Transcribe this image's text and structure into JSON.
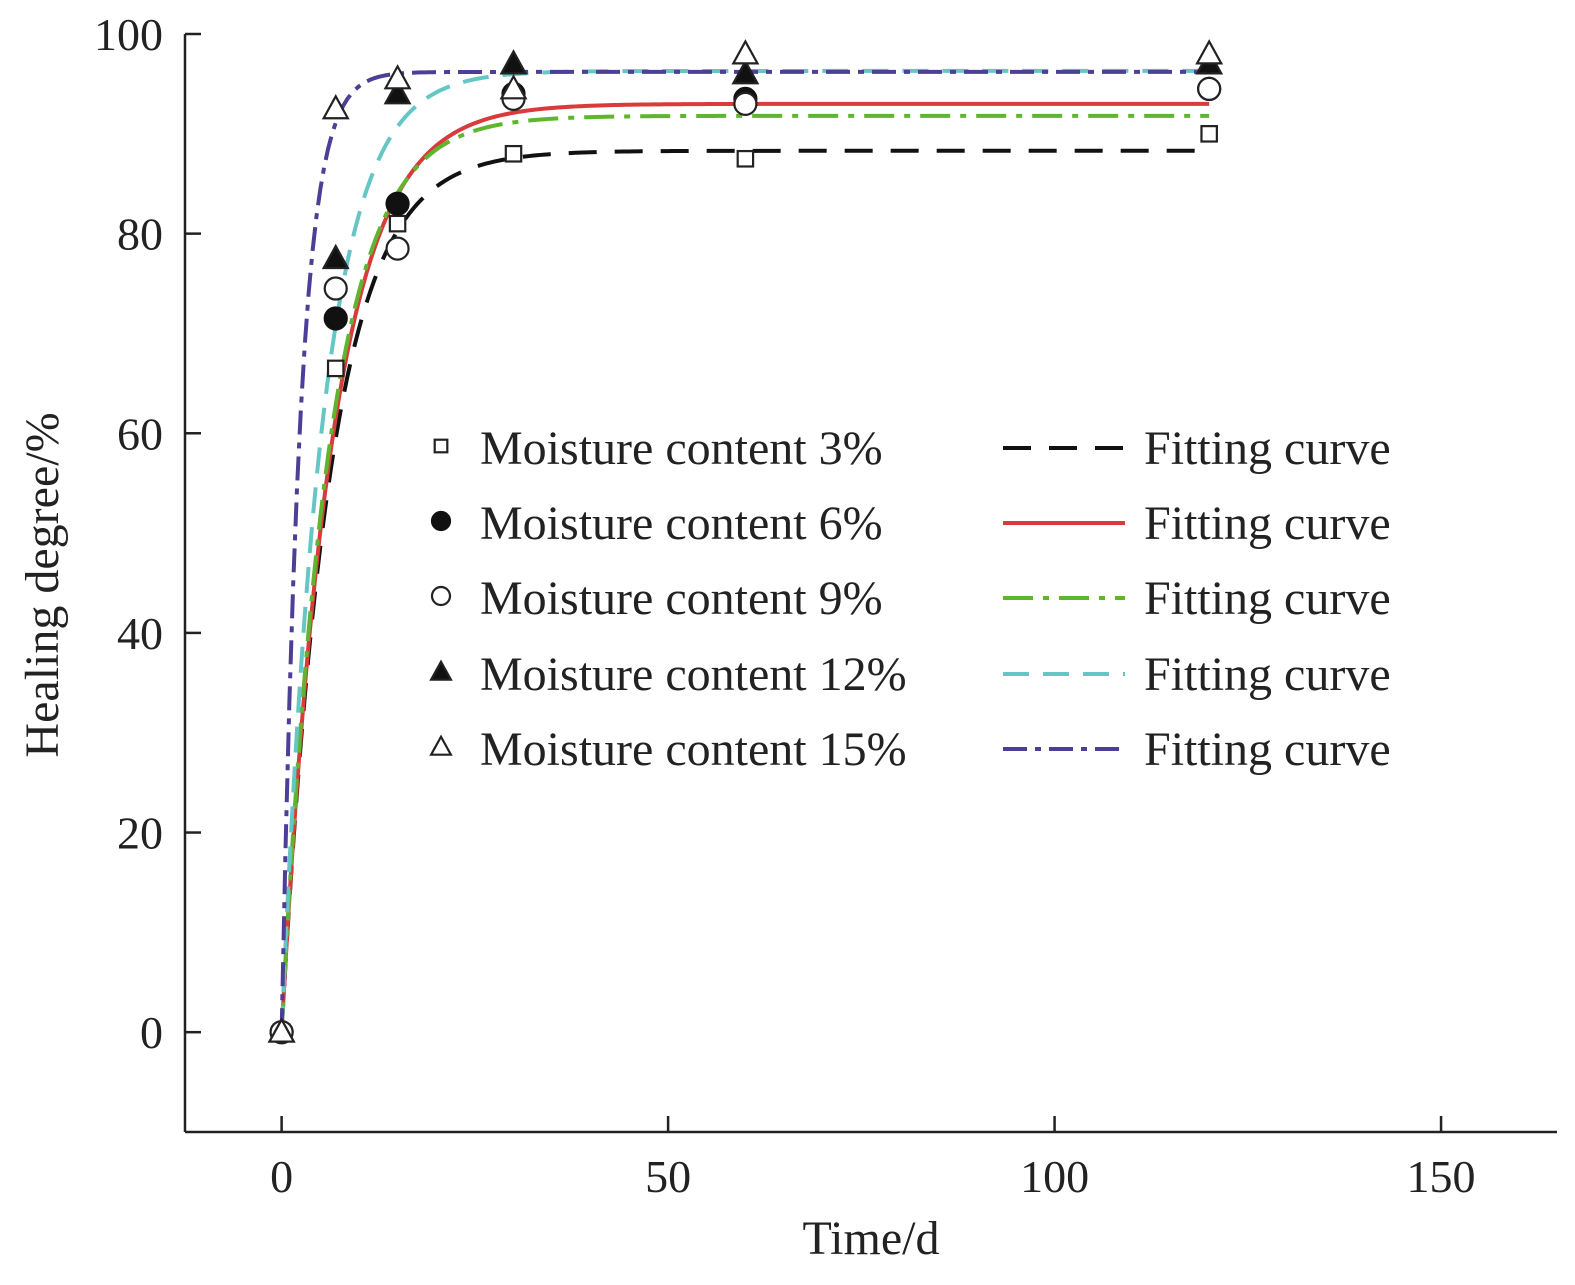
{
  "chart_data": {
    "type": "scatter",
    "xlabel": "Time/d",
    "ylabel": "Healing degree/%",
    "xlim": [
      -12.5,
      165
    ],
    "ylim": [
      -10,
      100
    ],
    "x_ticks": [
      0,
      50,
      100,
      150
    ],
    "y_ticks": [
      0,
      20,
      40,
      60,
      80,
      100
    ],
    "grid": false,
    "legend_position": "center-right",
    "series": [
      {
        "name": "Moisture content 3%",
        "marker": "open-square",
        "color": "#222222",
        "x": [
          0,
          7,
          15,
          30,
          60,
          120
        ],
        "y": [
          0,
          66.5,
          81.0,
          88.0,
          87.5,
          90.0
        ]
      },
      {
        "name": "Moisture content 6%",
        "marker": "filled-circle",
        "color": "#222222",
        "x": [
          0,
          7,
          15,
          30,
          60,
          120
        ],
        "y": [
          0,
          71.5,
          83.0,
          94.0,
          93.5,
          94.5
        ]
      },
      {
        "name": "Moisture content 9%",
        "marker": "open-circle",
        "color": "#222222",
        "x": [
          0,
          7,
          15,
          30,
          60,
          120
        ],
        "y": [
          0,
          74.5,
          78.5,
          93.5,
          93.0,
          94.5
        ]
      },
      {
        "name": "Moisture content 12%",
        "marker": "filled-triangle",
        "color": "#222222",
        "x": [
          0,
          7,
          15,
          30,
          60,
          120
        ],
        "y": [
          0,
          77.5,
          94.0,
          97.0,
          96.0,
          97.0
        ]
      },
      {
        "name": "Moisture content 15%",
        "marker": "open-triangle",
        "color": "#222222",
        "x": [
          0,
          7,
          15,
          30,
          60,
          120
        ],
        "y": [
          0,
          92.5,
          95.5,
          94.5,
          98.0,
          98.0
        ]
      }
    ],
    "fits": [
      {
        "name": "Fitting curve",
        "asymptote": 88.3,
        "rate": 0.16,
        "color": "#111111",
        "dash": "28,18",
        "x_range": [
          0,
          120
        ]
      },
      {
        "name": "Fitting curve",
        "asymptote": 93.0,
        "rate": 0.155,
        "color": "#d93a3a",
        "dash": "",
        "x_range": [
          0,
          120
        ]
      },
      {
        "name": "Fitting curve",
        "asymptote": 91.8,
        "rate": 0.165,
        "color": "#5fb530",
        "dash": "30,10,6,10",
        "x_range": [
          0,
          120
        ]
      },
      {
        "name": "Fitting curve",
        "asymptote": 96.3,
        "rate": 0.19,
        "color": "#66c6c6",
        "dash": "26,14",
        "x_range": [
          0,
          120
        ]
      },
      {
        "name": "Fitting curve",
        "asymptote": 96.2,
        "rate": 0.42,
        "color": "#4d3e96",
        "dash": "24,8,6,8",
        "x_range": [
          0,
          120
        ]
      }
    ]
  }
}
